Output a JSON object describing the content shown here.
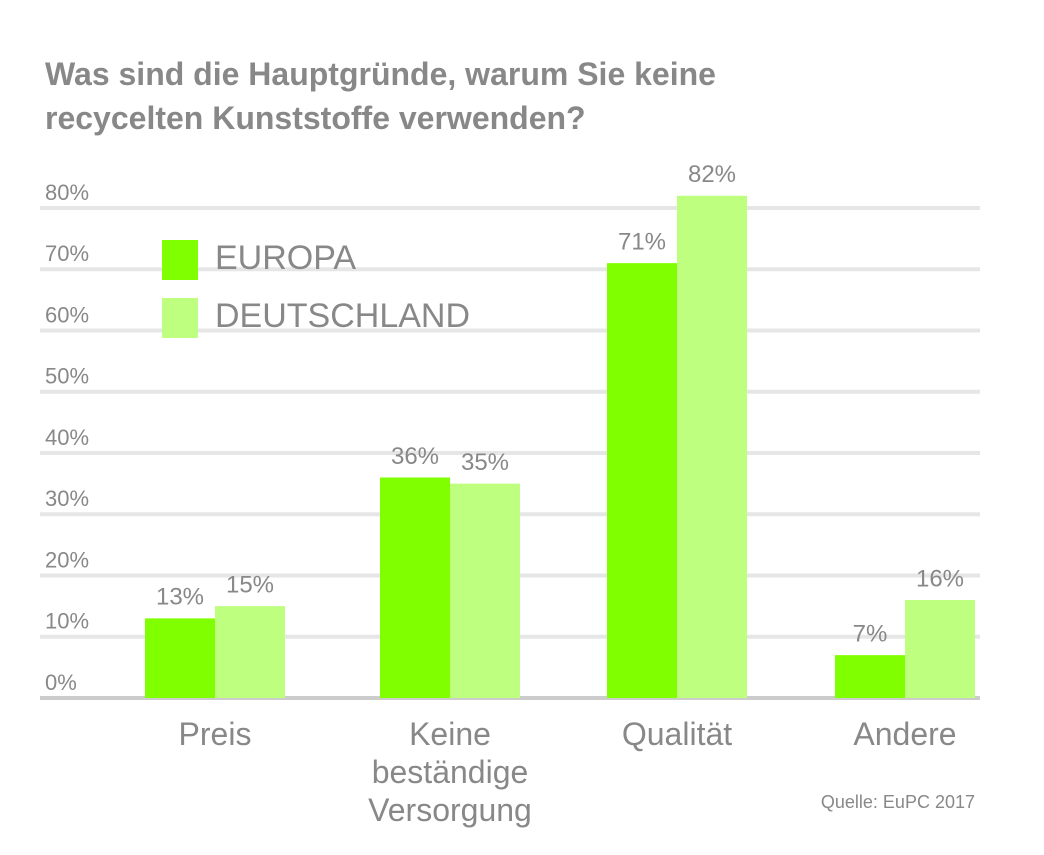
{
  "chart_data": {
    "type": "bar",
    "title": "Was sind die Hauptgründe, warum Sie keine recycelten Kunststoffe verwenden?",
    "categories": [
      "Preis",
      "Keine beständige Versorgung",
      "Qualität",
      "Andere"
    ],
    "series": [
      {
        "name": "EUROPA",
        "color": "#80ff00",
        "values": [
          13,
          36,
          71,
          7
        ]
      },
      {
        "name": "DEUTSCHLAND",
        "color": "#bfff80",
        "values": [
          15,
          35,
          82,
          16
        ]
      }
    ],
    "ylim": [
      0,
      80
    ],
    "yticks": [
      {
        "value": 0,
        "label": "0%"
      },
      {
        "value": 10,
        "label": "10%"
      },
      {
        "value": 20,
        "label": "20%"
      },
      {
        "value": 30,
        "label": "30%"
      },
      {
        "value": 40,
        "label": "40%"
      },
      {
        "value": 50,
        "label": "50%"
      },
      {
        "value": 60,
        "label": "60%"
      },
      {
        "value": 70,
        "label": "70%"
      },
      {
        "value": 80,
        "label": "80%"
      }
    ],
    "grid": true,
    "source": "Quelle: EuPC 2017"
  }
}
